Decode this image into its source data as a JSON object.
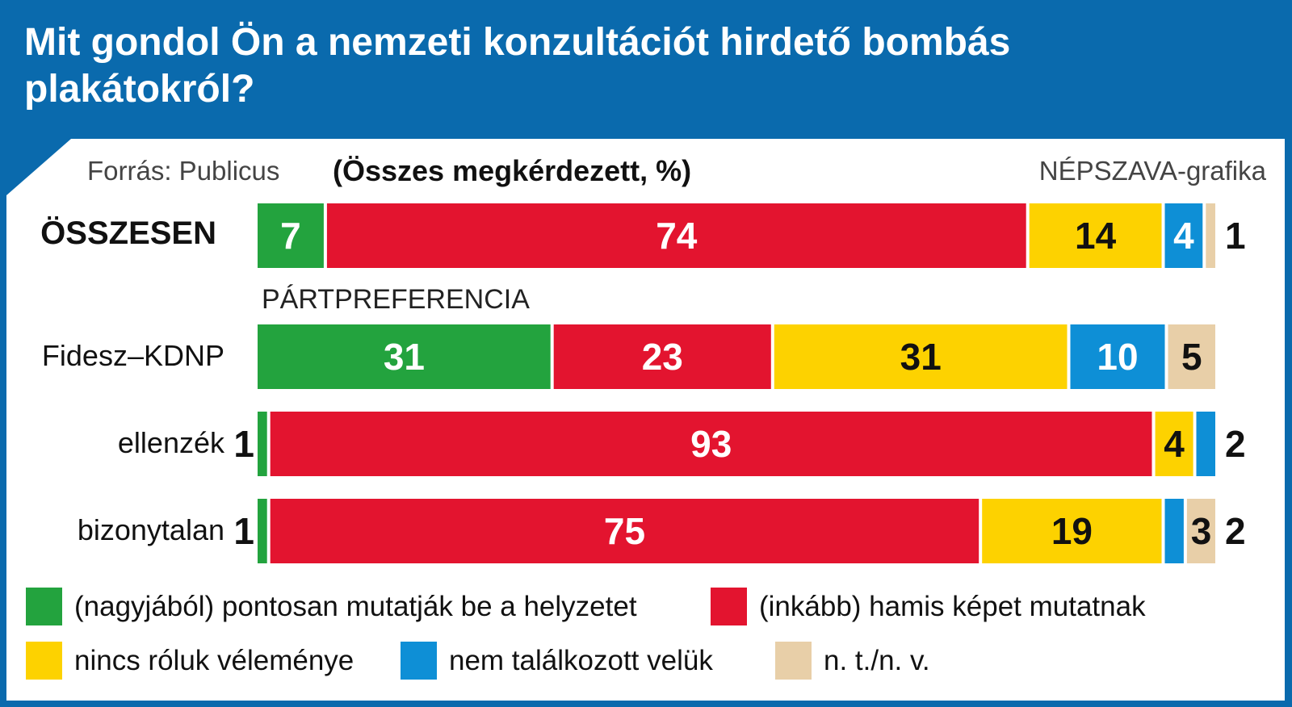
{
  "title": "Mit gondol Ön a nemzeti konzultációt hirdető bombás plakátokról?",
  "source": "Forrás: Publicus",
  "unit": "(Összes megkérdezett, %)",
  "credit": "NÉPSZAVA-grafika",
  "group_label": "PÁRTPREFERENCIA",
  "colors": {
    "header": "#0a6aad",
    "pontosan": "#23a33e",
    "hamis": "#e3142f",
    "nincs": "#fdd200",
    "nem_talalkozott": "#0e8fd6",
    "nt_nv": "#e8cfa8"
  },
  "chart_data": {
    "type": "bar",
    "stacked": true,
    "orientation": "horizontal",
    "categories": [
      "ÖSSZESEN",
      "Fidesz–KDNP",
      "ellenzék",
      "bizonytalan"
    ],
    "series": [
      {
        "name": "(nagyjából) pontosan mutatják be a helyzetet",
        "values": [
          7,
          31,
          1,
          1
        ]
      },
      {
        "name": "(inkább) hamis képet mutatnak",
        "values": [
          74,
          23,
          93,
          75
        ]
      },
      {
        "name": "nincs róluk véleménye",
        "values": [
          14,
          31,
          4,
          19
        ]
      },
      {
        "name": "nem találkozott velük",
        "values": [
          4,
          10,
          2,
          2
        ]
      },
      {
        "name": "n. t./n. v.",
        "values": [
          1,
          5,
          0,
          3
        ]
      }
    ],
    "legend": "bottom"
  }
}
